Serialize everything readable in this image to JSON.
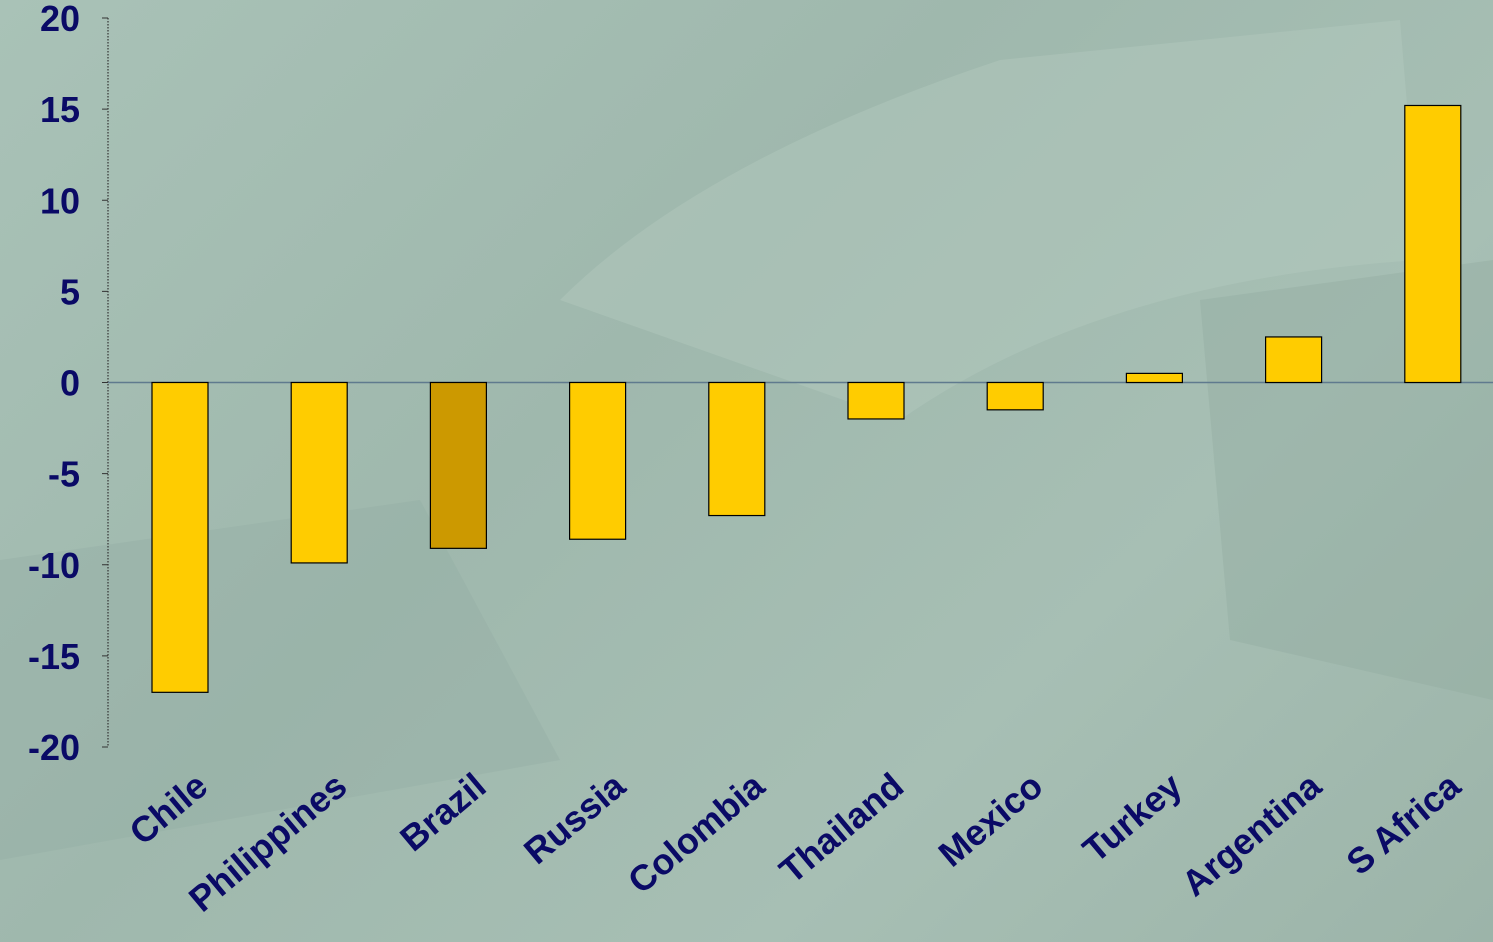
{
  "chart_data": {
    "type": "bar",
    "categories": [
      "Chile",
      "Philippines",
      "Brazil",
      "Russia",
      "Colombia",
      "Thailand",
      "Mexico",
      "Turkey",
      "Argentina",
      "S Africa"
    ],
    "values": [
      -17.0,
      -9.9,
      -9.1,
      -8.6,
      -7.3,
      -2.0,
      -1.5,
      0.5,
      2.5,
      15.2
    ],
    "highlight": "Brazil",
    "yticks": [
      "20",
      "15",
      "10",
      "5",
      "0",
      "-5",
      "-10",
      "-15",
      "-20"
    ],
    "ylim": [
      -20,
      20
    ],
    "title": "",
    "xlabel": "",
    "ylabel": "",
    "grid": false,
    "colors": {
      "bar": "#ffcc00",
      "highlight_bar": "#cc9900",
      "bar_outline": "#000000",
      "text": "#0a0a66",
      "zero_line": "#5f7a8e",
      "axis": "#333333"
    }
  }
}
